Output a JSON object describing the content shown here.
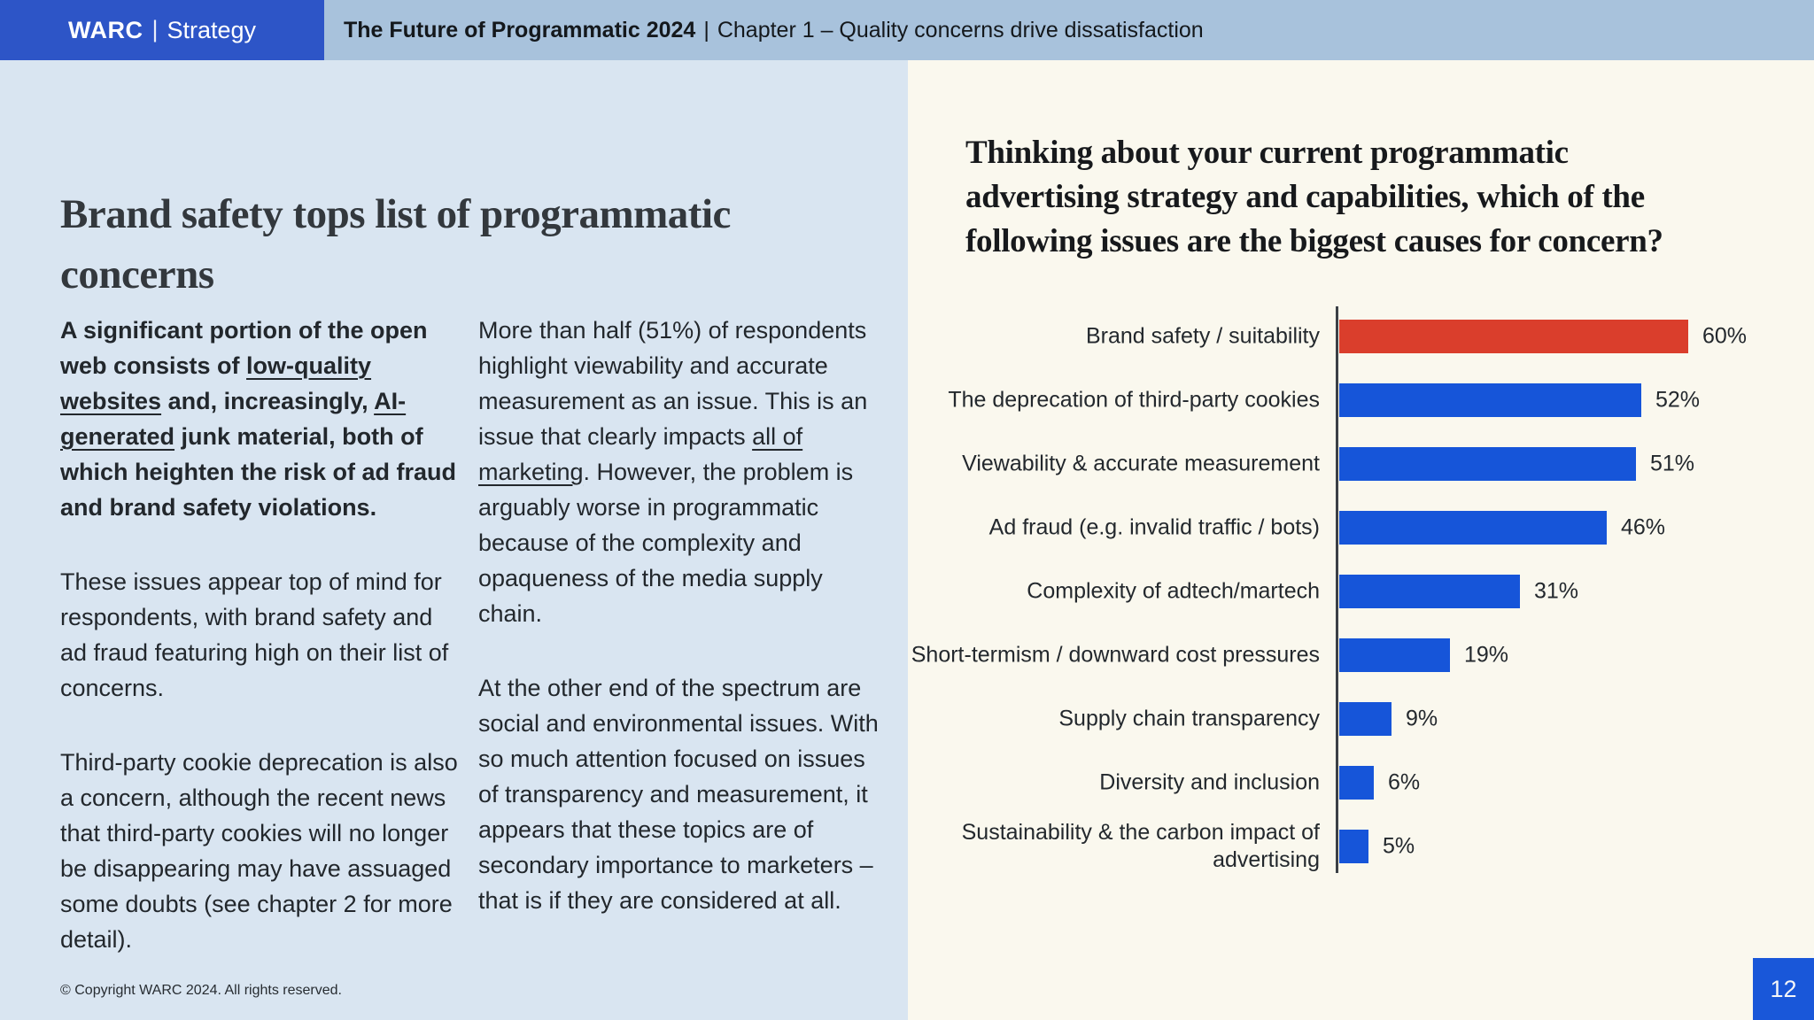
{
  "header": {
    "brand": {
      "name": "WARC",
      "divider": "|",
      "suffix": "Strategy"
    },
    "doc_title": "The Future of Programmatic 2024",
    "divider": "|",
    "chapter": "Chapter 1 – Quality concerns drive dissatisfaction"
  },
  "left_panel": {
    "headline_lines": [
      "Brand safety tops list of programmatic",
      "concerns"
    ],
    "column1": {
      "p1": [
        {
          "t": "A significant portion of the open web consists of "
        },
        {
          "t": "low-quality websites",
          "link": true
        },
        {
          "t": " and, increasingly, "
        },
        {
          "t": "AI-generated",
          "link": true
        },
        {
          "t": " junk material, both of which heighten the risk of ad fraud and brand safety violations."
        }
      ],
      "p2": "These issues appear top of mind for respondents, with brand safety and ad fraud featuring high on their list of concerns.",
      "p3": "Third-party cookie deprecation is also a concern, although the recent news that third-party cookies will no longer be disappearing may have assuaged some doubts (see chapter 2 for more detail)."
    },
    "column2": {
      "p1": [
        {
          "t": "More than half (51%) of respondents highlight viewability and accurate measurement as an issue. This is an issue that clearly impacts "
        },
        {
          "t": "all of marketing",
          "link": true
        },
        {
          "t": ". However, the problem is arguably worse in programmatic because of the complexity and opaqueness of the media supply chain."
        }
      ],
      "p2": "At the other end of the spectrum are social and environmental issues. With so much attention focused on issues of transparency and measurement, it appears that these topics are of secondary importance to marketers – that is if they are considered at all."
    },
    "footer": "© Copyright WARC 2024. All rights reserved."
  },
  "chart_data": {
    "type": "bar",
    "orientation": "horizontal",
    "title": "Thinking about your current programmatic advertising strategy and capabilities, which of the following issues are the biggest causes for concern?",
    "title_lines": [
      "Thinking about your current programmatic",
      "advertising strategy and capabilities, which of the",
      "following issues are the biggest causes for concern?"
    ],
    "categories": [
      "Brand safety / suitability",
      "The deprecation of third-party cookies",
      "Viewability & accurate measurement",
      "Ad fraud (e.g. invalid traffic / bots)",
      "Complexity of adtech/martech",
      "Short-termism / downward cost pressures",
      "Supply chain transparency",
      "Diversity and inclusion",
      "Sustainability & the carbon impact of advertising"
    ],
    "values": [
      60,
      52,
      51,
      46,
      31,
      19,
      9,
      6,
      5
    ],
    "unit": "%",
    "data_labels": true,
    "highlight_index": 0,
    "xlim": [
      0,
      60
    ],
    "grid": false,
    "legend": false
  },
  "page_number": "12",
  "colors": {
    "brand_blue": "#2d55c7",
    "header_strip": "#a8c2dc",
    "left_bg": "#d9e5f1",
    "right_bg": "#faf8ee",
    "bar_default": "#1655d9",
    "bar_highlight": "#da3e2c",
    "page_box": "#1957d9"
  }
}
